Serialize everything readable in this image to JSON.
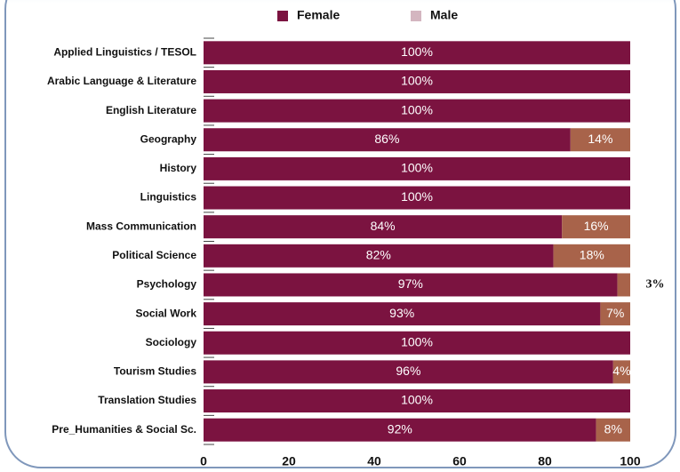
{
  "chart_data": {
    "type": "stacked_barh",
    "categories": [
      "Applied Linguistics / TESOL",
      "Arabic Language & Literature",
      "English Literature",
      "Geography",
      "History",
      "Linguistics",
      "Mass Communication",
      "Political Science",
      "Psychology",
      "Social Work",
      "Sociology",
      "Tourism Studies",
      "Translation Studies",
      "Pre_Humanities & Social Sc."
    ],
    "series": [
      {
        "name": "Female",
        "color": "#7b1340",
        "legend_color": "#7b1340",
        "values": [
          100,
          100,
          100,
          86,
          100,
          100,
          84,
          82,
          97,
          93,
          100,
          96,
          100,
          92
        ],
        "value_labels": [
          "100%",
          "100%",
          "100%",
          "86%",
          "100%",
          "100%",
          "84%",
          "82%",
          "97%",
          "93%",
          "100%",
          "96%",
          "100%",
          "92%"
        ]
      },
      {
        "name": "Male",
        "color": "#a8634a",
        "legend_color": "#d4b6c0",
        "values": [
          0,
          0,
          0,
          14,
          0,
          0,
          16,
          18,
          3,
          7,
          0,
          4,
          0,
          8
        ],
        "value_labels": [
          null,
          null,
          null,
          "14%",
          null,
          null,
          "16%",
          "18%",
          "3%",
          "7%",
          null,
          "4%",
          null,
          "8%"
        ]
      }
    ],
    "xlim": [
      0,
      100
    ],
    "xticks": [
      0,
      20,
      40,
      60,
      80,
      100
    ],
    "legend": "top"
  }
}
